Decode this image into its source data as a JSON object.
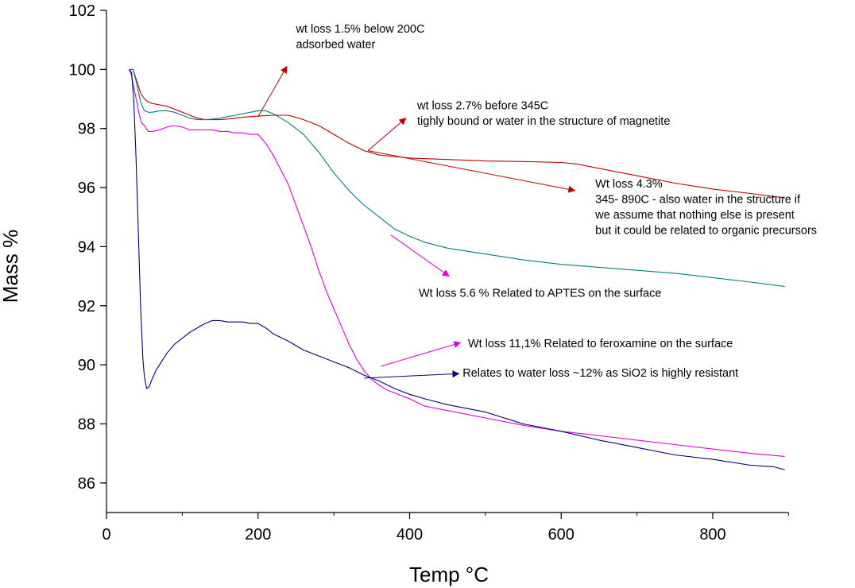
{
  "chart_data": {
    "type": "line",
    "title": "",
    "xlabel": "Temp °C",
    "ylabel": "Mass %",
    "xlim": [
      0,
      900
    ],
    "ylim": [
      85,
      102
    ],
    "xticks": [
      0,
      200,
      400,
      600,
      800
    ],
    "yticks": [
      86,
      88,
      90,
      92,
      94,
      96,
      98,
      100,
      102
    ],
    "grid": false,
    "series": [
      {
        "name": "red",
        "color": "#c00000",
        "x": [
          30,
          35,
          40,
          45,
          50,
          55,
          60,
          70,
          80,
          90,
          100,
          110,
          120,
          130,
          140,
          150,
          160,
          170,
          180,
          190,
          200,
          220,
          240,
          260,
          280,
          300,
          320,
          340,
          360,
          380,
          400,
          450,
          500,
          550,
          600,
          620,
          650,
          700,
          750,
          800,
          850,
          880,
          895
        ],
        "y": [
          100,
          100,
          99.6,
          99.2,
          99.0,
          98.9,
          98.85,
          98.8,
          98.75,
          98.65,
          98.55,
          98.45,
          98.35,
          98.3,
          98.3,
          98.3,
          98.32,
          98.35,
          98.38,
          98.4,
          98.42,
          98.45,
          98.45,
          98.3,
          98.1,
          97.8,
          97.5,
          97.25,
          97.1,
          97.05,
          97.0,
          96.95,
          96.9,
          96.88,
          96.85,
          96.8,
          96.65,
          96.4,
          96.15,
          95.95,
          95.8,
          95.7,
          95.65
        ]
      },
      {
        "name": "teal",
        "color": "#008080",
        "x": [
          30,
          35,
          40,
          45,
          50,
          55,
          60,
          70,
          80,
          90,
          100,
          110,
          120,
          130,
          140,
          150,
          160,
          170,
          180,
          190,
          200,
          210,
          220,
          240,
          260,
          280,
          300,
          320,
          340,
          360,
          380,
          400,
          420,
          450,
          500,
          550,
          600,
          650,
          700,
          750,
          800,
          850,
          895
        ],
        "y": [
          100,
          100,
          99.5,
          98.9,
          98.6,
          98.55,
          98.55,
          98.6,
          98.6,
          98.55,
          98.45,
          98.35,
          98.3,
          98.3,
          98.32,
          98.35,
          98.4,
          98.45,
          98.5,
          98.55,
          98.6,
          98.6,
          98.5,
          98.2,
          97.8,
          97.2,
          96.5,
          95.9,
          95.4,
          95.0,
          94.6,
          94.35,
          94.15,
          93.95,
          93.75,
          93.55,
          93.4,
          93.3,
          93.2,
          93.1,
          92.95,
          92.8,
          92.65
        ]
      },
      {
        "name": "magenta",
        "color": "#e000e0",
        "x": [
          30,
          33,
          36,
          40,
          43,
          46,
          50,
          55,
          60,
          70,
          80,
          90,
          100,
          110,
          120,
          130,
          140,
          150,
          160,
          170,
          180,
          190,
          200,
          210,
          220,
          230,
          240,
          250,
          260,
          270,
          280,
          290,
          300,
          310,
          320,
          330,
          340,
          350,
          360,
          370,
          380,
          390,
          400,
          420,
          450,
          500,
          550,
          600,
          650,
          700,
          750,
          800,
          850,
          895
        ],
        "y": [
          100,
          99.8,
          99.4,
          98.9,
          98.5,
          98.2,
          98.1,
          97.9,
          97.9,
          97.95,
          98.05,
          98.1,
          98.05,
          97.95,
          97.95,
          97.95,
          97.95,
          97.9,
          97.9,
          97.85,
          97.85,
          97.8,
          97.8,
          97.5,
          97.1,
          96.6,
          96.1,
          95.4,
          94.7,
          94.0,
          93.2,
          92.5,
          91.9,
          91.3,
          90.7,
          90.2,
          89.8,
          89.5,
          89.3,
          89.15,
          89.05,
          88.95,
          88.85,
          88.6,
          88.45,
          88.2,
          87.95,
          87.75,
          87.6,
          87.45,
          87.3,
          87.15,
          87.0,
          86.9
        ]
      },
      {
        "name": "navy",
        "color": "#000080",
        "x": [
          30,
          33,
          36,
          39,
          42,
          45,
          48,
          50,
          53,
          56,
          60,
          65,
          70,
          80,
          90,
          100,
          110,
          120,
          130,
          140,
          150,
          160,
          170,
          180,
          190,
          200,
          210,
          220,
          240,
          260,
          280,
          300,
          320,
          340,
          360,
          380,
          400,
          420,
          450,
          500,
          550,
          600,
          650,
          700,
          750,
          800,
          850,
          880,
          895
        ],
        "y": [
          100,
          99.9,
          99.0,
          97.0,
          94.5,
          92.0,
          90.2,
          89.6,
          89.2,
          89.25,
          89.5,
          89.8,
          90.0,
          90.4,
          90.7,
          90.9,
          91.1,
          91.25,
          91.4,
          91.5,
          91.5,
          91.45,
          91.45,
          91.45,
          91.4,
          91.4,
          91.25,
          91.05,
          90.8,
          90.5,
          90.3,
          90.1,
          89.9,
          89.65,
          89.45,
          89.2,
          89.0,
          88.85,
          88.65,
          88.4,
          88.0,
          87.75,
          87.45,
          87.2,
          86.95,
          86.8,
          86.6,
          86.55,
          86.45
        ]
      }
    ],
    "annotations": [
      {
        "lines": [
          "wt loss 1.5% below 200C",
          "adsorbed water"
        ],
        "color": "#c00000",
        "text_pos": [
          250,
          101.25
        ],
        "arrow_from": [
          200,
          98.4
        ],
        "arrow_to": [
          238,
          100.1
        ]
      },
      {
        "lines": [
          "wt loss 2.7% before 345C",
          "tighly bound or water in the structure of magnetite"
        ],
        "color": "#c00000",
        "text_pos": [
          410,
          98.65
        ],
        "arrow_from": [
          345,
          97.25
        ],
        "arrow_to": [
          395,
          98.35
        ]
      },
      {
        "lines": [
          "Wt loss 4.3%",
          "345- 890C - also water in the structure if",
          "we assume that nothing else is present",
          "but it could be related to organic precursors"
        ],
        "color": "#c00000",
        "text_pos": [
          645,
          96.0
        ],
        "arrow_from": [
          345,
          97.25
        ],
        "arrow_to": [
          618,
          95.9
        ]
      },
      {
        "lines": [
          "Wt loss 5.6 % Related to APTES on the surface"
        ],
        "color": "#e000e0",
        "text_pos": [
          412,
          92.3
        ],
        "arrow_from": [
          375,
          94.4
        ],
        "arrow_to": [
          452,
          93.0
        ]
      },
      {
        "lines": [
          "Wt loss 11,1% Related to feroxamine on the surface"
        ],
        "color": "#e000e0",
        "text_pos": [
          477,
          90.6
        ],
        "arrow_from": [
          362,
          89.95
        ],
        "arrow_to": [
          467,
          90.75
        ]
      },
      {
        "lines": [
          "Relates to water loss ~12% as SiO2 is highly resistant"
        ],
        "color": "#000080",
        "text_pos": [
          470,
          89.6
        ],
        "arrow_from": [
          340,
          89.55
        ],
        "arrow_to": [
          465,
          89.7
        ]
      }
    ]
  }
}
